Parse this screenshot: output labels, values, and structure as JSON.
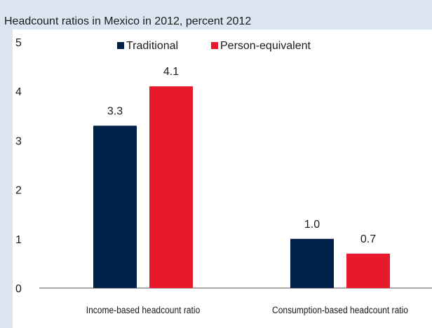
{
  "title": "Headcount ratios in Mexico in 2012, percent 2012",
  "chart_data": {
    "type": "bar",
    "categories": [
      "Income-based headcount ratio",
      "Consumption-based headcount ratio"
    ],
    "series": [
      {
        "name": "Traditional",
        "values": [
          3.3,
          1.0
        ],
        "labels": [
          "3.3",
          "1.0"
        ],
        "color": "#002147"
      },
      {
        "name": "Person-equivalent",
        "values": [
          4.1,
          0.7
        ],
        "labels": [
          "4.1",
          "0.7"
        ],
        "color": "#e8192c"
      }
    ],
    "ylim": [
      0,
      5
    ],
    "yticks": [
      "0",
      "1",
      "2",
      "3",
      "4",
      "5"
    ],
    "grid": false,
    "legend": "top-center"
  }
}
